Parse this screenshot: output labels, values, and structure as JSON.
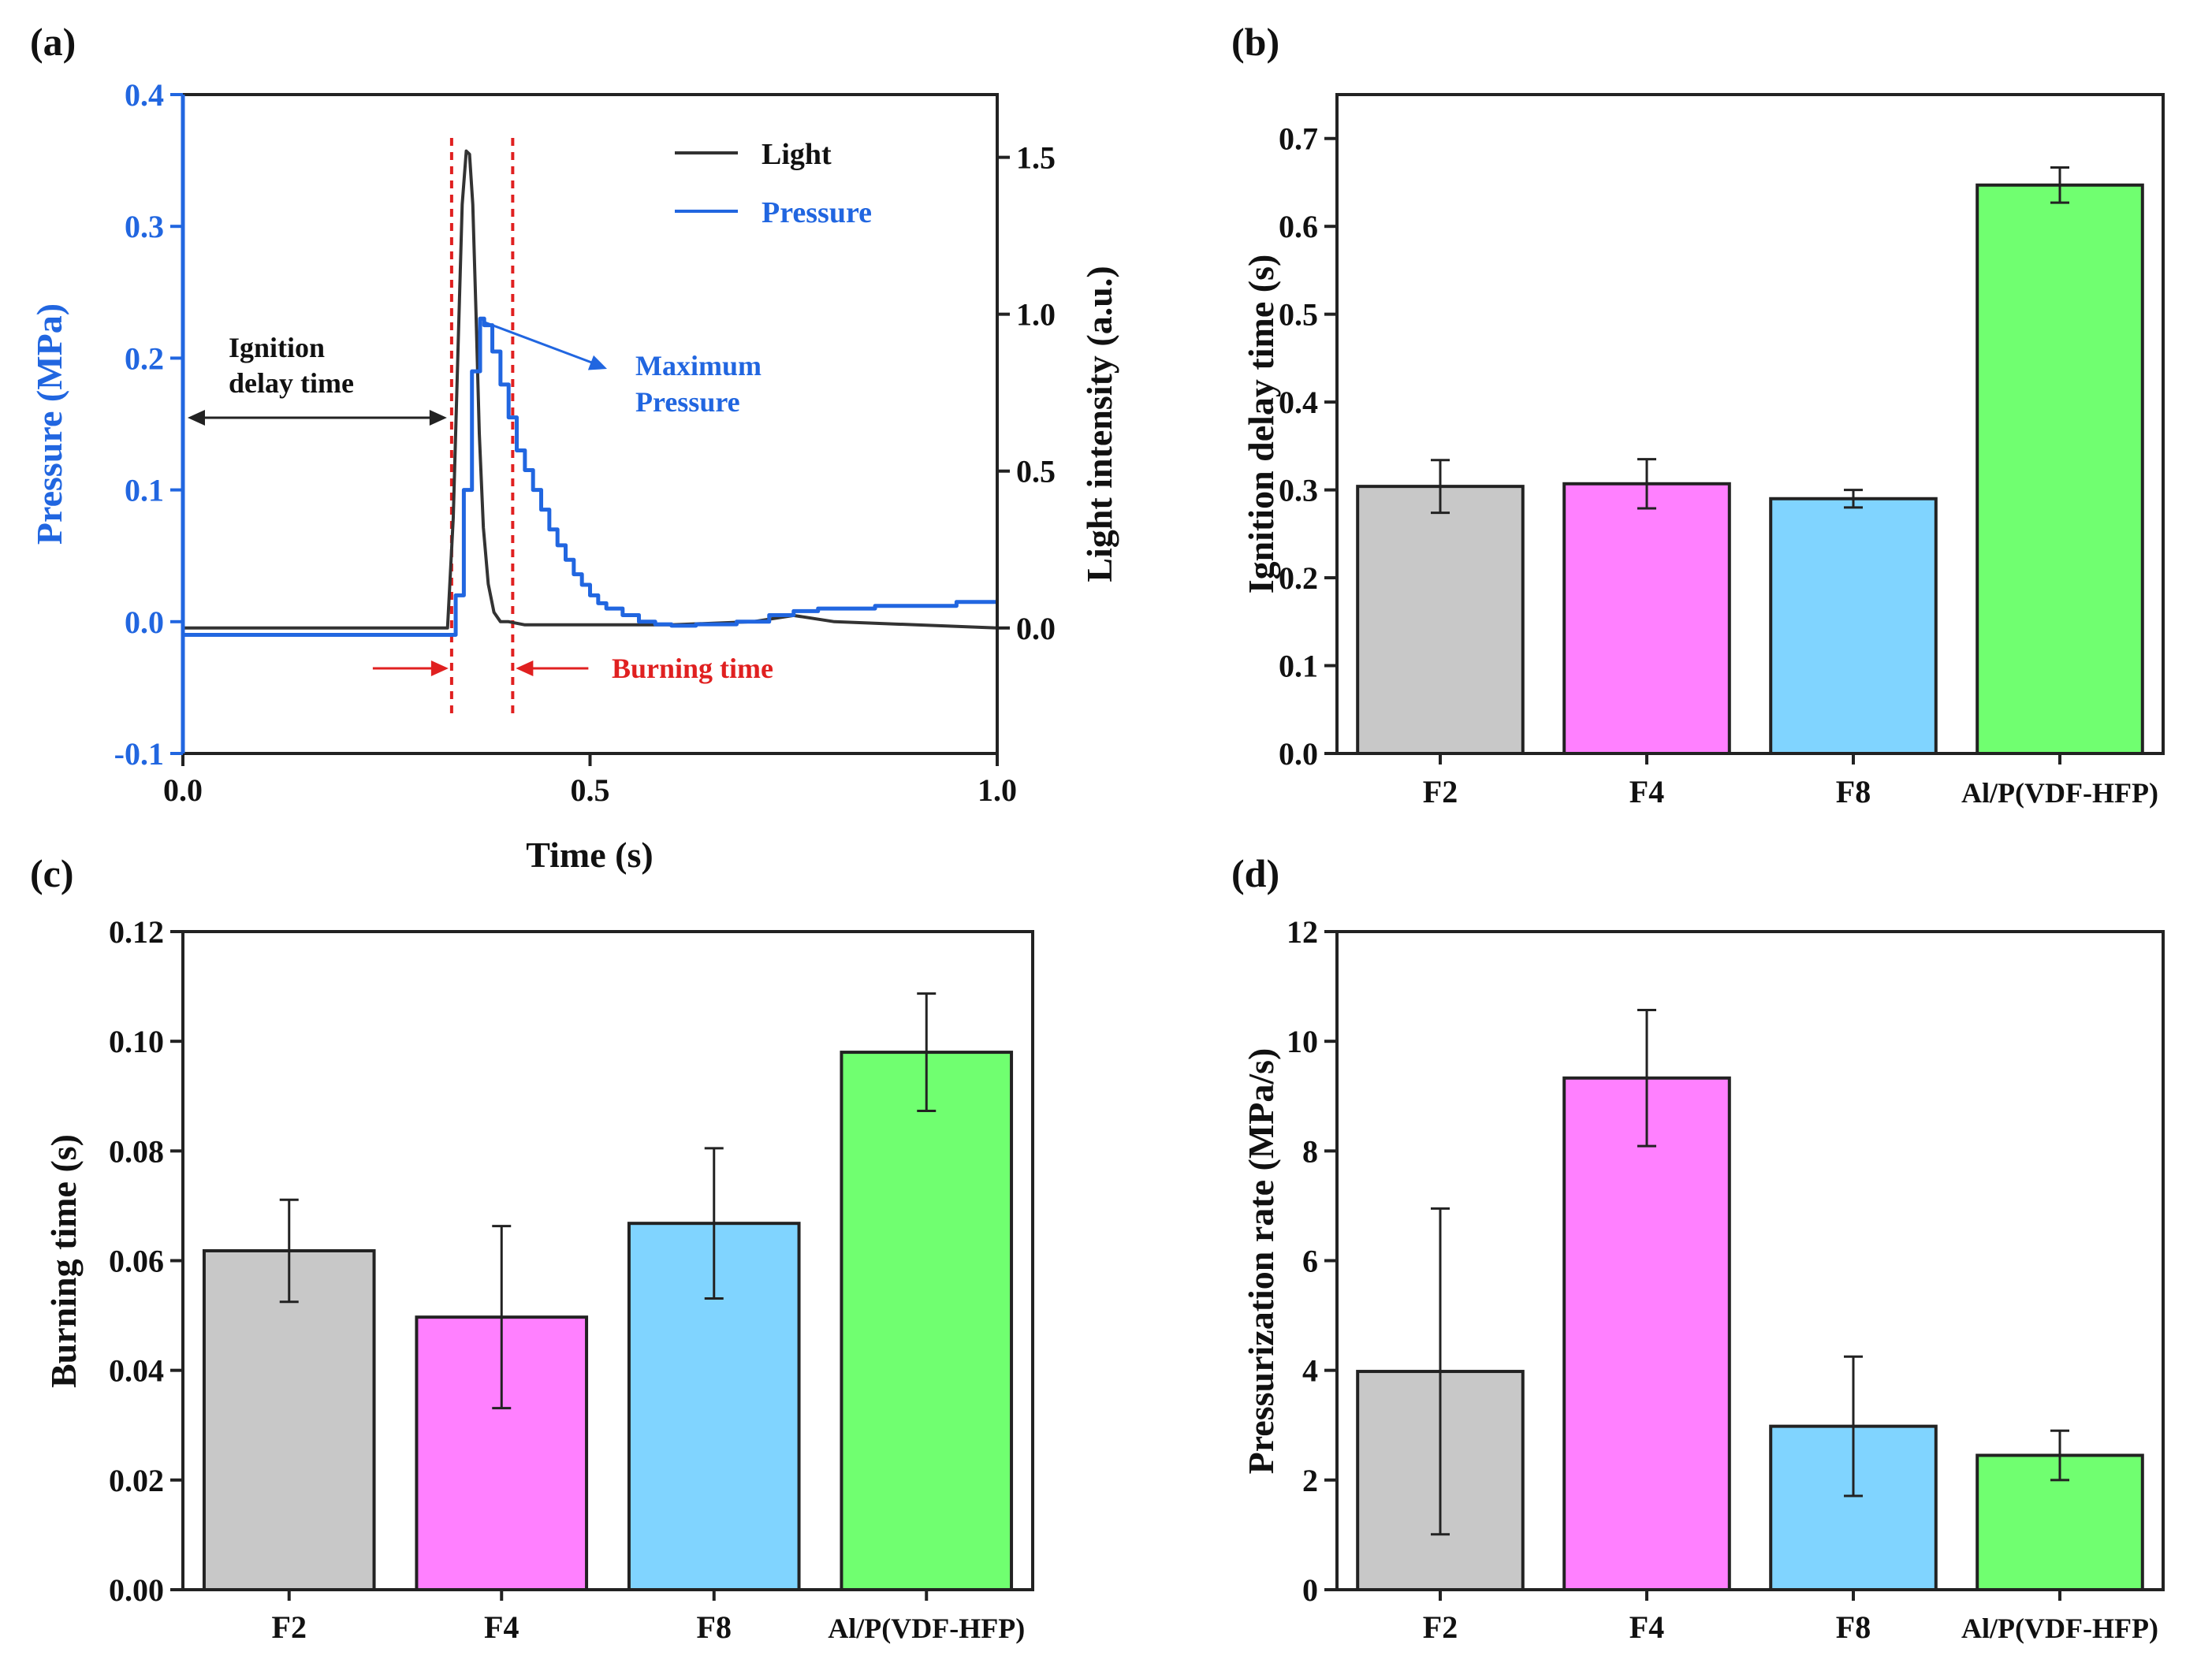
{
  "chart_data": [
    {
      "id": "a",
      "panel_label": "(a)",
      "type": "line",
      "xlabel": "Time (s)",
      "ylabel_left": "Pressure (MPa)",
      "ylabel_right": "Light intensity (a.u.)",
      "xlim": [
        0.0,
        1.0
      ],
      "ylim_left": [
        -0.1,
        0.4
      ],
      "ylim_right": [
        -0.4,
        1.7
      ],
      "xticks": [
        0.0,
        0.5,
        1.0
      ],
      "xtick_labels": [
        "0.0",
        "0.5",
        "1.0"
      ],
      "yticks_left": [
        -0.1,
        0.0,
        0.1,
        0.2,
        0.3,
        0.4
      ],
      "ytick_labels_left": [
        "-0.1",
        "0.0",
        "0.1",
        "0.2",
        "0.3",
        "0.4"
      ],
      "yticks_right": [
        0.0,
        0.5,
        1.0,
        1.5
      ],
      "ytick_labels_right": [
        "0.0",
        "0.5",
        "1.0",
        "1.5"
      ],
      "legend": [
        {
          "name": "Light",
          "color": "#333333"
        },
        {
          "name": "Pressure",
          "color": "#2166e0"
        }
      ],
      "series": [
        {
          "name": "Light",
          "axis": "right",
          "color": "#333333",
          "x": [
            0.0,
            0.3,
            0.325,
            0.332,
            0.338,
            0.343,
            0.348,
            0.352,
            0.356,
            0.36,
            0.364,
            0.369,
            0.375,
            0.382,
            0.39,
            0.4,
            0.42,
            0.5,
            0.6,
            0.7,
            0.75,
            0.8,
            1.0
          ],
          "y": [
            0.0,
            0.0,
            0.0,
            0.35,
            0.9,
            1.35,
            1.52,
            1.51,
            1.35,
            1.0,
            0.62,
            0.32,
            0.14,
            0.05,
            0.02,
            0.02,
            0.01,
            0.01,
            0.01,
            0.02,
            0.04,
            0.02,
            0.0
          ]
        },
        {
          "name": "Pressure",
          "axis": "left",
          "color": "#2166e0",
          "x": [
            0.0,
            0.25,
            0.33,
            0.335,
            0.345,
            0.355,
            0.365,
            0.37,
            0.38,
            0.39,
            0.4,
            0.41,
            0.42,
            0.43,
            0.44,
            0.45,
            0.46,
            0.47,
            0.48,
            0.49,
            0.5,
            0.51,
            0.52,
            0.54,
            0.56,
            0.58,
            0.6,
            0.63,
            0.68,
            0.72,
            0.75,
            0.78,
            0.8,
            0.85,
            0.9,
            0.95,
            1.0
          ],
          "y": [
            -0.01,
            -0.01,
            -0.01,
            0.02,
            0.1,
            0.19,
            0.23,
            0.225,
            0.205,
            0.18,
            0.155,
            0.13,
            0.115,
            0.1,
            0.085,
            0.07,
            0.058,
            0.047,
            0.036,
            0.028,
            0.02,
            0.014,
            0.01,
            0.005,
            0.0,
            -0.002,
            -0.003,
            -0.002,
            0.0,
            0.005,
            0.008,
            0.01,
            0.01,
            0.012,
            0.012,
            0.015,
            0.015
          ]
        }
      ],
      "vlines": [
        0.33,
        0.405
      ],
      "vline_color": "#e02020",
      "annotations": {
        "ignition_line1": "Ignition",
        "ignition_line2": "delay time",
        "maximum_line1": "Maximum",
        "maximum_line2": "Pressure",
        "burning": "Burning time"
      },
      "annotation_values": {
        "ignition_arrow": [
          0.0,
          0.33
        ],
        "burning_arrow": [
          0.33,
          0.405
        ],
        "max_pressure": {
          "x": 0.365,
          "y": 0.23
        }
      },
      "colors": {
        "pressure_axis": "#2166e0",
        "light_axis": "#111111",
        "annotation_blue": "#2166e0",
        "annotation_red": "#e02020"
      }
    },
    {
      "id": "b",
      "panel_label": "(b)",
      "type": "bar",
      "categories": [
        "F2",
        "F4",
        "F8",
        "Al/P(VDF-HFP)"
      ],
      "values": [
        0.304,
        0.307,
        0.29,
        0.647
      ],
      "errors": [
        0.03,
        0.028,
        0.01,
        0.02
      ],
      "colors": [
        "#c8c8c8",
        "#ff80ff",
        "#80d4ff",
        "#70ff70"
      ],
      "ylabel": "Ignition delay time (s)",
      "xlabel": "",
      "ylim": [
        0.0,
        0.75
      ],
      "yticks": [
        0.0,
        0.1,
        0.2,
        0.3,
        0.4,
        0.5,
        0.6,
        0.7
      ],
      "ytick_labels": [
        "0.0",
        "0.1",
        "0.2",
        "0.3",
        "0.4",
        "0.5",
        "0.6",
        "0.7"
      ]
    },
    {
      "id": "c",
      "panel_label": "(c)",
      "type": "bar",
      "categories": [
        "F2",
        "F4",
        "F8",
        "Al/P(VDF-HFP)"
      ],
      "values": [
        0.0618,
        0.0497,
        0.0668,
        0.098
      ],
      "errors": [
        0.0093,
        0.0166,
        0.0137,
        0.0107
      ],
      "colors": [
        "#c8c8c8",
        "#ff80ff",
        "#80d4ff",
        "#70ff70"
      ],
      "ylabel": "Burning time (s)",
      "xlabel": "",
      "ylim": [
        0.0,
        0.12
      ],
      "yticks": [
        0.0,
        0.02,
        0.04,
        0.06,
        0.08,
        0.1,
        0.12
      ],
      "ytick_labels": [
        "0.00",
        "0.02",
        "0.04",
        "0.06",
        "0.08",
        "0.10",
        "0.12"
      ]
    },
    {
      "id": "d",
      "panel_label": "(d)",
      "type": "bar",
      "categories": [
        "F2",
        "F4",
        "F8",
        "Al/P(VDF-HFP)"
      ],
      "values": [
        3.98,
        9.33,
        2.98,
        2.45
      ],
      "errors": [
        2.97,
        1.24,
        1.27,
        0.45
      ],
      "colors": [
        "#c8c8c8",
        "#ff80ff",
        "#80d4ff",
        "#70ff70"
      ],
      "ylabel": "Pressurization rate (MPa/s)",
      "xlabel": "",
      "ylim": [
        0,
        12
      ],
      "yticks": [
        0,
        2,
        4,
        6,
        8,
        10,
        12
      ],
      "ytick_labels": [
        "0",
        "2",
        "4",
        "6",
        "8",
        "10",
        "12"
      ]
    }
  ]
}
